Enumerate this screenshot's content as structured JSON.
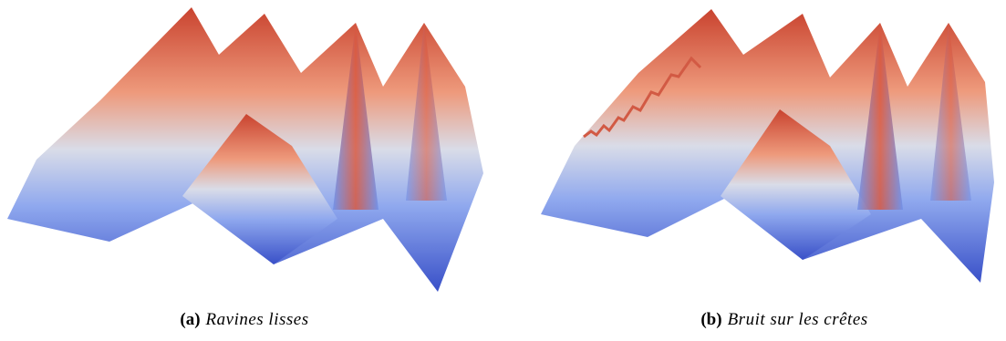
{
  "figures": [
    {
      "label": "(a)",
      "caption": "Ravines lisses"
    },
    {
      "label": "(b)",
      "caption": "Bruit sur les crêtes"
    }
  ]
}
